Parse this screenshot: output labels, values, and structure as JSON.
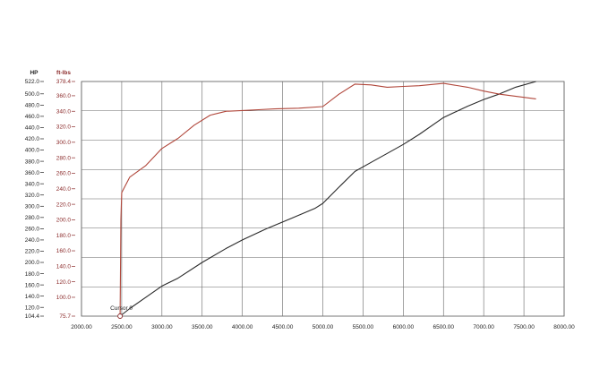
{
  "chart_data": {
    "type": "line",
    "axis_headers": {
      "hp": "HP",
      "torque": "ft-lbs"
    },
    "xlim": [
      2000,
      8000
    ],
    "x_ticks": [
      {
        "v": 2000,
        "label": "2000.00"
      },
      {
        "v": 2500,
        "label": "2500.00"
      },
      {
        "v": 3000,
        "label": "3000.00"
      },
      {
        "v": 3500,
        "label": "3500.00"
      },
      {
        "v": 4000,
        "label": "4000.00"
      },
      {
        "v": 4500,
        "label": "4500.00"
      },
      {
        "v": 5000,
        "label": "5000.00"
      },
      {
        "v": 5500,
        "label": "5500.00"
      },
      {
        "v": 6000,
        "label": "6000.00"
      },
      {
        "v": 6500,
        "label": "6500.00"
      },
      {
        "v": 7000,
        "label": "7000.00"
      },
      {
        "v": 7500,
        "label": "7500.00"
      },
      {
        "v": 8000,
        "label": "8000.00"
      }
    ],
    "hp_axis": {
      "ylim": [
        104.4,
        522.0
      ],
      "ticks": [
        {
          "v": 522.0,
          "label": "522.0"
        },
        {
          "v": 500.0,
          "label": "500.0"
        },
        {
          "v": 480.0,
          "label": "480.0"
        },
        {
          "v": 460.0,
          "label": "460.0"
        },
        {
          "v": 440.0,
          "label": "440.0"
        },
        {
          "v": 420.0,
          "label": "420.0"
        },
        {
          "v": 400.0,
          "label": "400.0"
        },
        {
          "v": 380.0,
          "label": "380.0"
        },
        {
          "v": 360.0,
          "label": "360.0"
        },
        {
          "v": 340.0,
          "label": "340.0"
        },
        {
          "v": 320.0,
          "label": "320.0"
        },
        {
          "v": 300.0,
          "label": "300.0"
        },
        {
          "v": 280.0,
          "label": "280.0"
        },
        {
          "v": 260.0,
          "label": "260.0"
        },
        {
          "v": 240.0,
          "label": "240.0"
        },
        {
          "v": 220.0,
          "label": "220.0"
        },
        {
          "v": 200.0,
          "label": "200.0"
        },
        {
          "v": 180.0,
          "label": "180.0"
        },
        {
          "v": 160.0,
          "label": "160.0"
        },
        {
          "v": 140.0,
          "label": "140.0"
        },
        {
          "v": 120.0,
          "label": "120.0"
        },
        {
          "v": 104.4,
          "label": "104.4"
        }
      ]
    },
    "torque_axis": {
      "ylim": [
        75.7,
        378.4
      ],
      "ticks": [
        {
          "v": 378.4,
          "label": "378.4"
        },
        {
          "v": 360.0,
          "label": "360.0"
        },
        {
          "v": 340.0,
          "label": "340.0"
        },
        {
          "v": 320.0,
          "label": "320.0"
        },
        {
          "v": 300.0,
          "label": "300.0"
        },
        {
          "v": 280.0,
          "label": "280.0"
        },
        {
          "v": 260.0,
          "label": "260.0"
        },
        {
          "v": 240.0,
          "label": "240.0"
        },
        {
          "v": 220.0,
          "label": "220.0"
        },
        {
          "v": 200.0,
          "label": "200.0"
        },
        {
          "v": 180.0,
          "label": "180.0"
        },
        {
          "v": 160.0,
          "label": "160.0"
        },
        {
          "v": 140.0,
          "label": "140.0"
        },
        {
          "v": 120.0,
          "label": "120.0"
        },
        {
          "v": 100.0,
          "label": "100.0"
        },
        {
          "v": 75.7,
          "label": "75.7"
        }
      ]
    },
    "grid": true,
    "cursor": {
      "label": "Cursor 0",
      "x": 2480,
      "hp": 104.4
    },
    "series": [
      {
        "key": "hp",
        "axis": "hp",
        "color": "#2a2a2a",
        "x": [
          2480,
          2600,
          2800,
          3000,
          3200,
          3500,
          3800,
          4000,
          4300,
          4600,
          4900,
          5000,
          5200,
          5400,
          5600,
          5800,
          6000,
          6200,
          6500,
          6800,
          7000,
          7200,
          7400,
          7650
        ],
        "values": [
          104.4,
          118,
          138,
          158,
          172,
          200,
          225,
          240,
          260,
          278,
          296,
          305,
          334,
          362,
          378,
          394,
          410,
          428,
          458,
          478,
          490,
          500,
          512,
          522
        ]
      },
      {
        "key": "torque",
        "axis": "torque",
        "color": "#b0463a",
        "x": [
          2480,
          2490,
          2500,
          2600,
          2800,
          3000,
          3200,
          3400,
          3600,
          3800,
          4000,
          4200,
          4400,
          4700,
          5000,
          5200,
          5400,
          5600,
          5800,
          6000,
          6200,
          6500,
          6800,
          7000,
          7200,
          7500,
          7650
        ],
        "values": [
          75.7,
          200,
          235,
          255,
          270,
          292,
          305,
          322,
          335,
          340,
          341,
          342,
          343,
          344,
          346,
          362,
          375,
          374,
          371,
          372,
          373,
          376,
          371,
          366,
          362,
          358,
          356
        ]
      }
    ]
  }
}
